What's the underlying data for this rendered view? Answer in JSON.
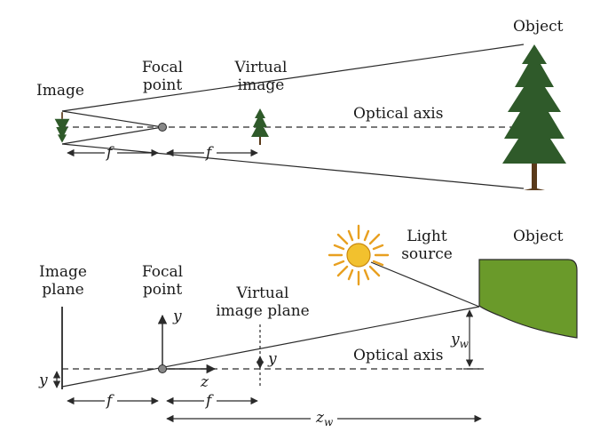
{
  "top_diagram": {
    "labels": {
      "image": "Image",
      "focal_point_line1": "Focal",
      "focal_point_line2": "point",
      "virtual_image_line1": "Virtual",
      "virtual_image_line2": "image",
      "object": "Object",
      "optical_axis": "Optical axis",
      "f_left": "f",
      "f_right": "f"
    }
  },
  "bottom_diagram": {
    "labels": {
      "image_plane_line1": "Image",
      "image_plane_line2": "plane",
      "focal_point_line1": "Focal",
      "focal_point_line2": "point",
      "virtual_image_plane_line1": "Virtual",
      "virtual_image_plane_line2": "image plane",
      "light_source_line1": "Light",
      "light_source_line2": "source",
      "object": "Object",
      "optical_axis": "Optical axis",
      "y_axis": "y",
      "z_axis": "z",
      "y_virtual": "y",
      "y_image": "y",
      "yw_main": "y",
      "yw_sub": "w",
      "zw_main": "z",
      "zw_sub": "w",
      "f_left": "f",
      "f_right": "f"
    }
  },
  "colors": {
    "line": "#2a2a2a",
    "sun_fill": "#f2c12e",
    "sun_rays": "#e8a020",
    "object_fill": "#6a9a2a",
    "tree": "#2f5a2a"
  }
}
